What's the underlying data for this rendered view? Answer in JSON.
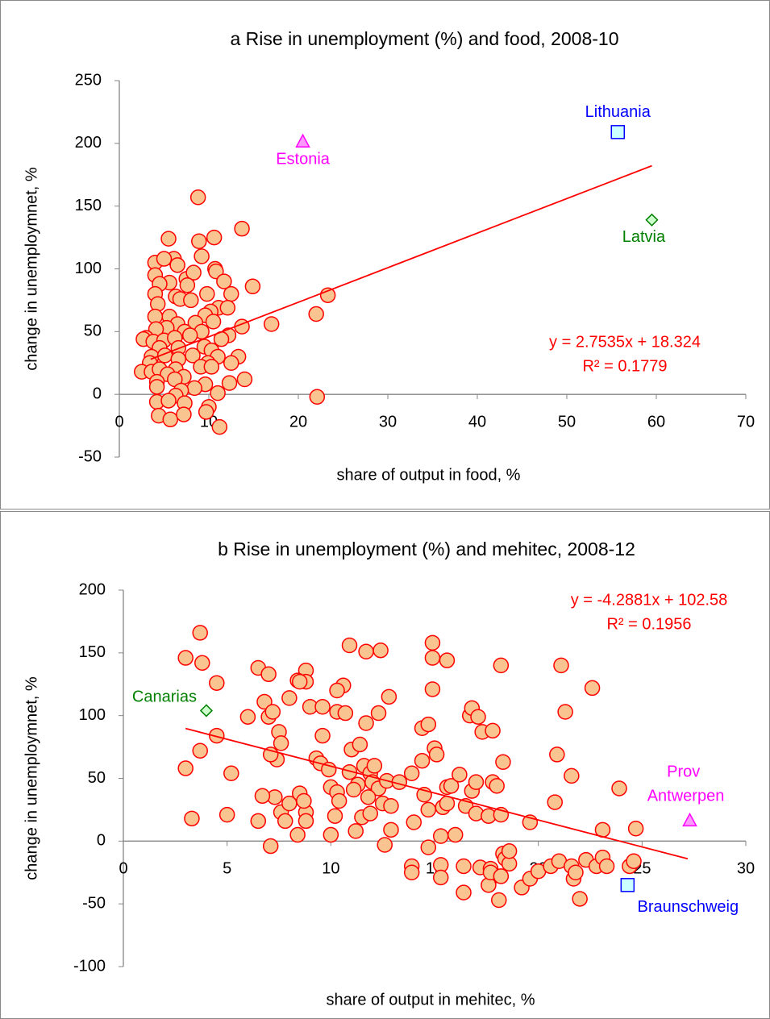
{
  "chart_data": [
    {
      "type": "scatter",
      "title": "a Rise in unemployment (%) and food, 2008-10",
      "xlabel": "share of output in food, %",
      "ylabel": "change in unemploymnet, %",
      "xlim": [
        0,
        70
      ],
      "xticks": [
        0,
        10,
        20,
        30,
        40,
        50,
        60,
        70
      ],
      "ylim": [
        -50,
        250
      ],
      "yticks": [
        -50,
        0,
        50,
        100,
        150,
        200,
        250
      ],
      "series": [
        {
          "marker": "circle",
          "color": "#f9c490",
          "edgecolor": "#ff0000",
          "x": [
            8.8,
            5.5,
            10.6,
            13.7,
            8.9,
            9.2,
            4,
            6.1,
            5,
            10.7,
            10.8,
            4,
            6.5,
            7.5,
            8.3,
            11.7,
            14.9,
            7.6,
            5.6,
            4.5,
            12.5,
            9.8,
            4,
            6.3,
            6.8,
            8,
            11.1,
            12.1,
            4.3,
            10.2,
            9.6,
            5.6,
            4,
            23.3,
            22,
            17,
            13.7,
            10.5,
            8.5,
            6.5,
            5.3,
            9.2,
            7.3,
            4.1,
            3,
            2.7,
            3.8,
            5,
            6.2,
            7.9,
            9.5,
            10.3,
            12.2,
            11.4,
            4.5,
            6.6,
            3.6,
            5.1,
            8.2,
            11,
            13.3,
            6.6,
            3.4,
            9.9,
            2.5,
            3.6,
            4.5,
            6.3,
            9.1,
            10.3,
            12.5,
            5.4,
            7.2,
            14,
            4.2,
            6.2,
            12.3,
            9.6,
            4.2,
            8.4,
            6.9,
            11,
            22.1,
            6.3,
            4.2,
            5.5,
            7.3,
            10,
            4.4,
            5.7,
            7.2,
            9.7,
            11.2
          ],
          "values": [
            157,
            124,
            125,
            132,
            122,
            110,
            105,
            108,
            108,
            100,
            98,
            95,
            103,
            92,
            97,
            90,
            86,
            87,
            89,
            88,
            80,
            80,
            80,
            78,
            76,
            75,
            69,
            69,
            72,
            66,
            63,
            62,
            62,
            79,
            64,
            56,
            54,
            58,
            57,
            56,
            53,
            50,
            50,
            52,
            45,
            44,
            42,
            43,
            45,
            47,
            38,
            35,
            47,
            44,
            37,
            37,
            30,
            31,
            31,
            30,
            30,
            28,
            25,
            25,
            18,
            18,
            20,
            20,
            22,
            22,
            25,
            16,
            14,
            12,
            10,
            12,
            9,
            8,
            6,
            5,
            3,
            1,
            -2,
            -1,
            -6,
            -5,
            -7,
            -10,
            -17,
            -20,
            -16,
            -14,
            -26
          ]
        },
        {
          "name": "Estonia",
          "marker": "triangle",
          "color": "#ff99ff",
          "edgecolor": "#ff00ff",
          "x": [
            20.5
          ],
          "values": [
            201
          ]
        },
        {
          "name": "Lithuania",
          "marker": "square",
          "color": "#ccffff",
          "edgecolor": "#0000ff",
          "x": [
            55.7
          ],
          "values": [
            209
          ]
        },
        {
          "name": "Latvia",
          "marker": "diamond",
          "color": "#ccffcc",
          "edgecolor": "#008000",
          "x": [
            59.5
          ],
          "values": [
            139
          ]
        }
      ],
      "trendline": {
        "color": "#ff0000",
        "x": [
          3.5,
          59.5
        ],
        "values": [
          27.96,
          182.16
        ],
        "equation": "y = 2.7535x + 18.324",
        "r_squared": "R² = 0.1779"
      }
    },
    {
      "type": "scatter",
      "title": "b Rise in unemployment (%) and mehitec, 2008-12",
      "xlabel": "share of output in mehitec, %",
      "ylabel": "change in unemploymnet, %",
      "xlim": [
        0,
        30
      ],
      "xticks": [
        0,
        5,
        10,
        15,
        20,
        25,
        30
      ],
      "ylim": [
        -100,
        200
      ],
      "yticks": [
        -100,
        -50,
        0,
        50,
        100,
        150,
        200
      ],
      "series": [
        {
          "marker": "circle",
          "color": "#f9c490",
          "edgecolor": "#ff0000",
          "x": [
            3.7,
            3,
            3.8,
            4.5,
            6.5,
            7,
            8.8,
            8.8,
            10.9,
            11.7,
            12.4,
            14.9,
            14.9,
            15.6,
            10.6,
            10.3,
            12.8,
            8.4,
            6.8,
            7,
            7.2,
            6,
            7.5,
            7.6,
            8,
            8.5,
            9,
            9.6,
            9.6,
            10.3,
            10.7,
            11.7,
            12.3,
            14.9,
            14.4,
            14.7,
            16.7,
            16.8,
            17.1,
            17.3,
            18.2,
            17.8,
            18.3,
            20.9,
            21.1,
            21.3,
            22.6,
            23.9,
            21.6,
            3.7,
            4.5,
            3,
            5.2,
            7.4,
            7.1,
            7.3,
            6.7,
            6.5,
            7.1,
            7.6,
            7.8,
            8,
            8.4,
            8.5,
            8.8,
            8.8,
            8.7,
            9.3,
            9.5,
            9.9,
            10,
            10.3,
            10.2,
            10.4,
            10.9,
            11,
            11.4,
            11.6,
            11.3,
            11.9,
            12,
            12.3,
            12.5,
            12.7,
            12.9,
            12.6,
            12.9,
            11.5,
            11.9,
            11.2,
            10,
            11.1,
            11.8,
            12.1,
            13.3,
            13.9,
            14,
            14.5,
            14.4,
            14.7,
            15,
            15.1,
            15.4,
            15.6,
            15.8,
            15.6,
            16.2,
            16.5,
            16.8,
            17,
            17,
            17.8,
            18,
            17.6,
            18.2,
            16,
            15.3,
            19.6,
            20.8,
            23.1,
            24.7,
            3.3,
            5,
            13.9,
            13.9,
            14.7,
            15.3,
            15.3,
            16.4,
            16.4,
            17.2,
            17.7,
            17.8,
            17.6,
            17.7,
            18.1,
            18.2,
            18.3,
            18.4,
            18.6,
            18.6,
            19.2,
            19.6,
            20,
            20.6,
            21,
            21.6,
            21.7,
            21.8,
            22,
            22.3,
            22.8,
            23.1,
            23.3,
            24.4,
            24.6
          ],
          "values": [
            166,
            146,
            142,
            126,
            138,
            133,
            136,
            127,
            156,
            151,
            152,
            158,
            146,
            144,
            124,
            120,
            115,
            128,
            111,
            99,
            103,
            99,
            87,
            78,
            114,
            127,
            107,
            107,
            84,
            103,
            102,
            94,
            102,
            121,
            90,
            93,
            100,
            106,
            99,
            87,
            140,
            88,
            63,
            69,
            140,
            103,
            122,
            42,
            52,
            72,
            84,
            58,
            54,
            65,
            69,
            35,
            36,
            16,
            -4,
            23,
            16,
            30,
            5,
            38,
            23,
            16,
            32,
            66,
            62,
            57,
            43,
            39,
            20,
            32,
            55,
            73,
            77,
            60,
            45,
            54,
            47,
            42,
            30,
            48,
            9,
            -3,
            28,
            19,
            22,
            8,
            5,
            41,
            35,
            60,
            47,
            54,
            15,
            37,
            64,
            25,
            74,
            69,
            27,
            43,
            44,
            30,
            53,
            28,
            40,
            47,
            22,
            47,
            44,
            20,
            21,
            5,
            4,
            15,
            31,
            9,
            10,
            18,
            21,
            -20,
            -25,
            -5,
            -19,
            -29,
            -20,
            -41,
            -21,
            -22,
            -28,
            -35,
            -25,
            -47,
            -28,
            -10,
            -14,
            -18,
            -8,
            -37,
            -30,
            -24,
            -20,
            -16,
            -20,
            -30,
            -25,
            -46,
            -15,
            -20,
            -13,
            -20,
            -20,
            -16
          ]
        },
        {
          "name": "Canarias",
          "marker": "diamond",
          "color": "#ccffcc",
          "edgecolor": "#008000",
          "x": [
            4.0
          ],
          "values": [
            104
          ]
        },
        {
          "name": "Prov Antwerpen",
          "marker": "triangle",
          "color": "#ff99ff",
          "edgecolor": "#ff00ff",
          "x": [
            27.3
          ],
          "values": [
            16
          ]
        },
        {
          "name": "Braunschweig",
          "marker": "square",
          "color": "#ccffff",
          "edgecolor": "#0000ff",
          "x": [
            24.3
          ],
          "values": [
            -35
          ]
        }
      ],
      "trendline": {
        "color": "#ff0000",
        "x": [
          3.0,
          27.2
        ],
        "values": [
          89.72,
          -14.06
        ],
        "equation": "y = -4.2881x + 102.58",
        "r_squared": "R² = 0.1956"
      }
    }
  ]
}
